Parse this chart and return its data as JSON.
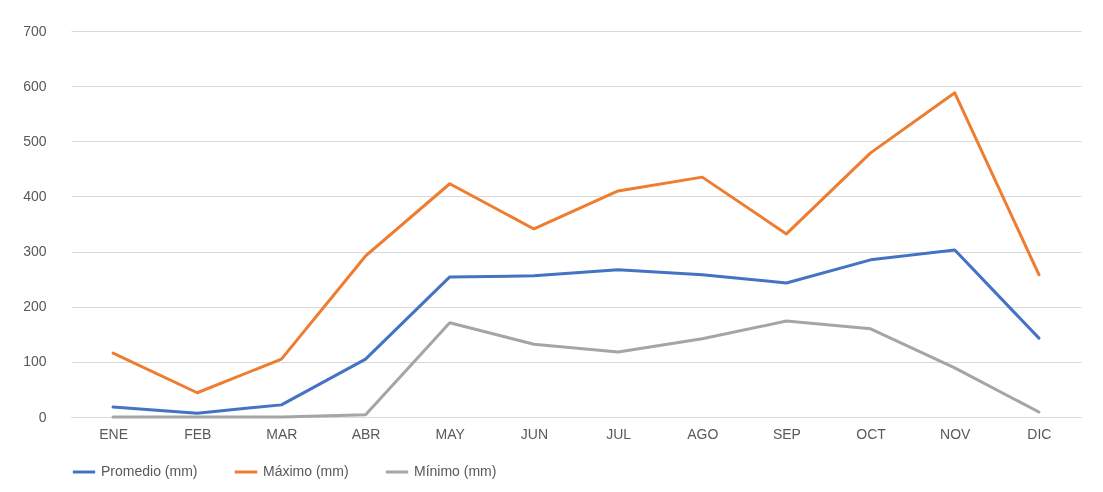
{
  "chart_data": {
    "type": "line",
    "categories": [
      "ENE",
      "FEB",
      "MAR",
      "ABR",
      "MAY",
      "JUN",
      "JUL",
      "AGO",
      "SEP",
      "OCT",
      "NOV",
      "DIC"
    ],
    "series": [
      {
        "name": "Promedio (mm)",
        "color": "#4472c4",
        "values": [
          18,
          7,
          22,
          105,
          254,
          256,
          267,
          258,
          243,
          285,
          303,
          143
        ]
      },
      {
        "name": "Máximo (mm)",
        "color": "#ed7d31",
        "values": [
          116,
          44,
          105,
          292,
          423,
          341,
          410,
          435,
          332,
          479,
          588,
          258
        ]
      },
      {
        "name": "Mínimo (mm)",
        "color": "#a5a5a5",
        "values": [
          0,
          0,
          0,
          4,
          171,
          132,
          118,
          142,
          174,
          160,
          89,
          9
        ]
      }
    ],
    "ylim": [
      0,
      700
    ],
    "yticks": [
      0,
      100,
      200,
      300,
      400,
      500,
      600,
      700
    ],
    "grid": "y",
    "legend": "bottom",
    "marker": "none",
    "line_style": "solid"
  }
}
